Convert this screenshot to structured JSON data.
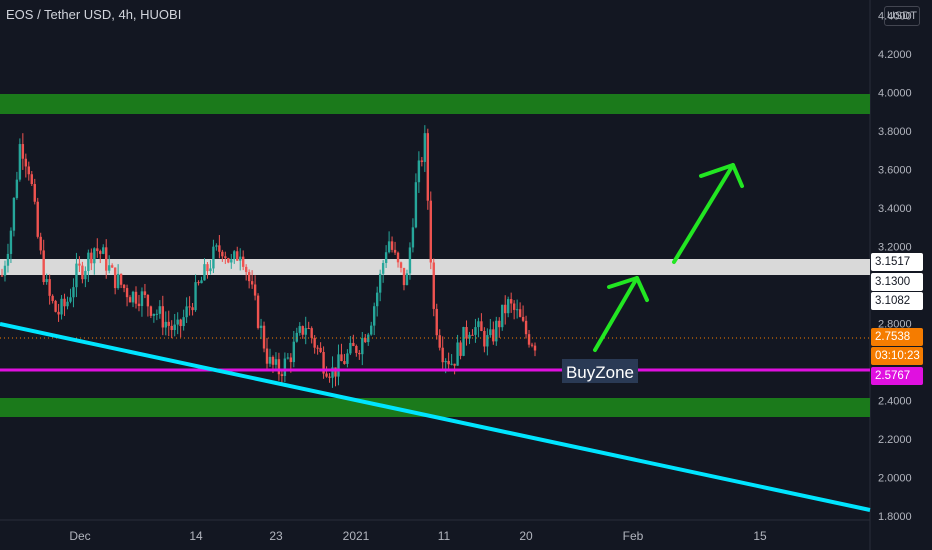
{
  "header": {
    "title": "EOS / Tether USD, 4h, HUOBI",
    "currency": "USDT"
  },
  "colors": {
    "background": "#131722",
    "candle_up": "#26a69a",
    "candle_down": "#ef5350",
    "zone_green": "#1b7a1b",
    "zone_white": "#d9d9d9",
    "trendline": "#00e5ff",
    "support_line": "#e010e0",
    "arrow": "#22e622",
    "last_price": "#f57c00"
  },
  "price_labels": {
    "zone_top": "3.1517",
    "zone_bottom": "3.1082",
    "mid": "3.1300",
    "last_price": "2.7538",
    "countdown": "03:10:23",
    "support": "2.5767"
  },
  "annotation": {
    "text": "BuyZone"
  },
  "chart_data": {
    "type": "candlestick",
    "title": "EOS / Tether USD, 4h, HUOBI",
    "ylim": [
      1.78,
      4.48
    ],
    "y_ticks": [
      "4.4000",
      "4.2000",
      "4.0000",
      "3.8000",
      "3.6000",
      "3.4000",
      "3.2000",
      "3.1300",
      "2.8000",
      "2.4000",
      "2.2000",
      "2.0000",
      "1.8000"
    ],
    "x_ticks": [
      "Dec",
      "14",
      "23",
      "2021",
      "11",
      "20",
      "Feb",
      "15"
    ],
    "price_series": [
      3.05,
      3.3,
      3.75,
      3.6,
      3.2,
      2.95,
      2.85,
      2.9,
      3.05,
      3.1,
      3.2,
      3.15,
      3.05,
      3.0,
      2.95,
      2.95,
      2.9,
      2.85,
      2.8,
      2.75,
      2.85,
      2.95,
      3.05,
      3.15,
      3.2,
      3.1,
      3.2,
      3.0,
      2.8,
      2.6,
      2.55,
      2.6,
      2.7,
      2.8,
      2.7,
      2.6,
      2.55,
      2.6,
      2.65,
      2.7,
      2.8,
      3.0,
      3.25,
      3.1,
      3.0,
      3.5,
      3.75,
      2.85,
      2.65,
      2.6,
      2.7,
      2.8,
      2.75,
      2.7,
      2.8,
      2.9,
      2.85,
      2.75,
      2.7
    ],
    "zones": [
      {
        "type": "resistance",
        "from": 3.95,
        "to": 4.05
      },
      {
        "type": "pivot",
        "from": 3.11,
        "to": 3.15
      },
      {
        "type": "support",
        "from": 2.34,
        "to": 2.42
      }
    ],
    "horizontal_lines": [
      {
        "value": 2.5767
      }
    ],
    "trendline": {
      "from": 2.86,
      "to": 1.84
    },
    "annotations": [
      "BuyZone"
    ]
  }
}
